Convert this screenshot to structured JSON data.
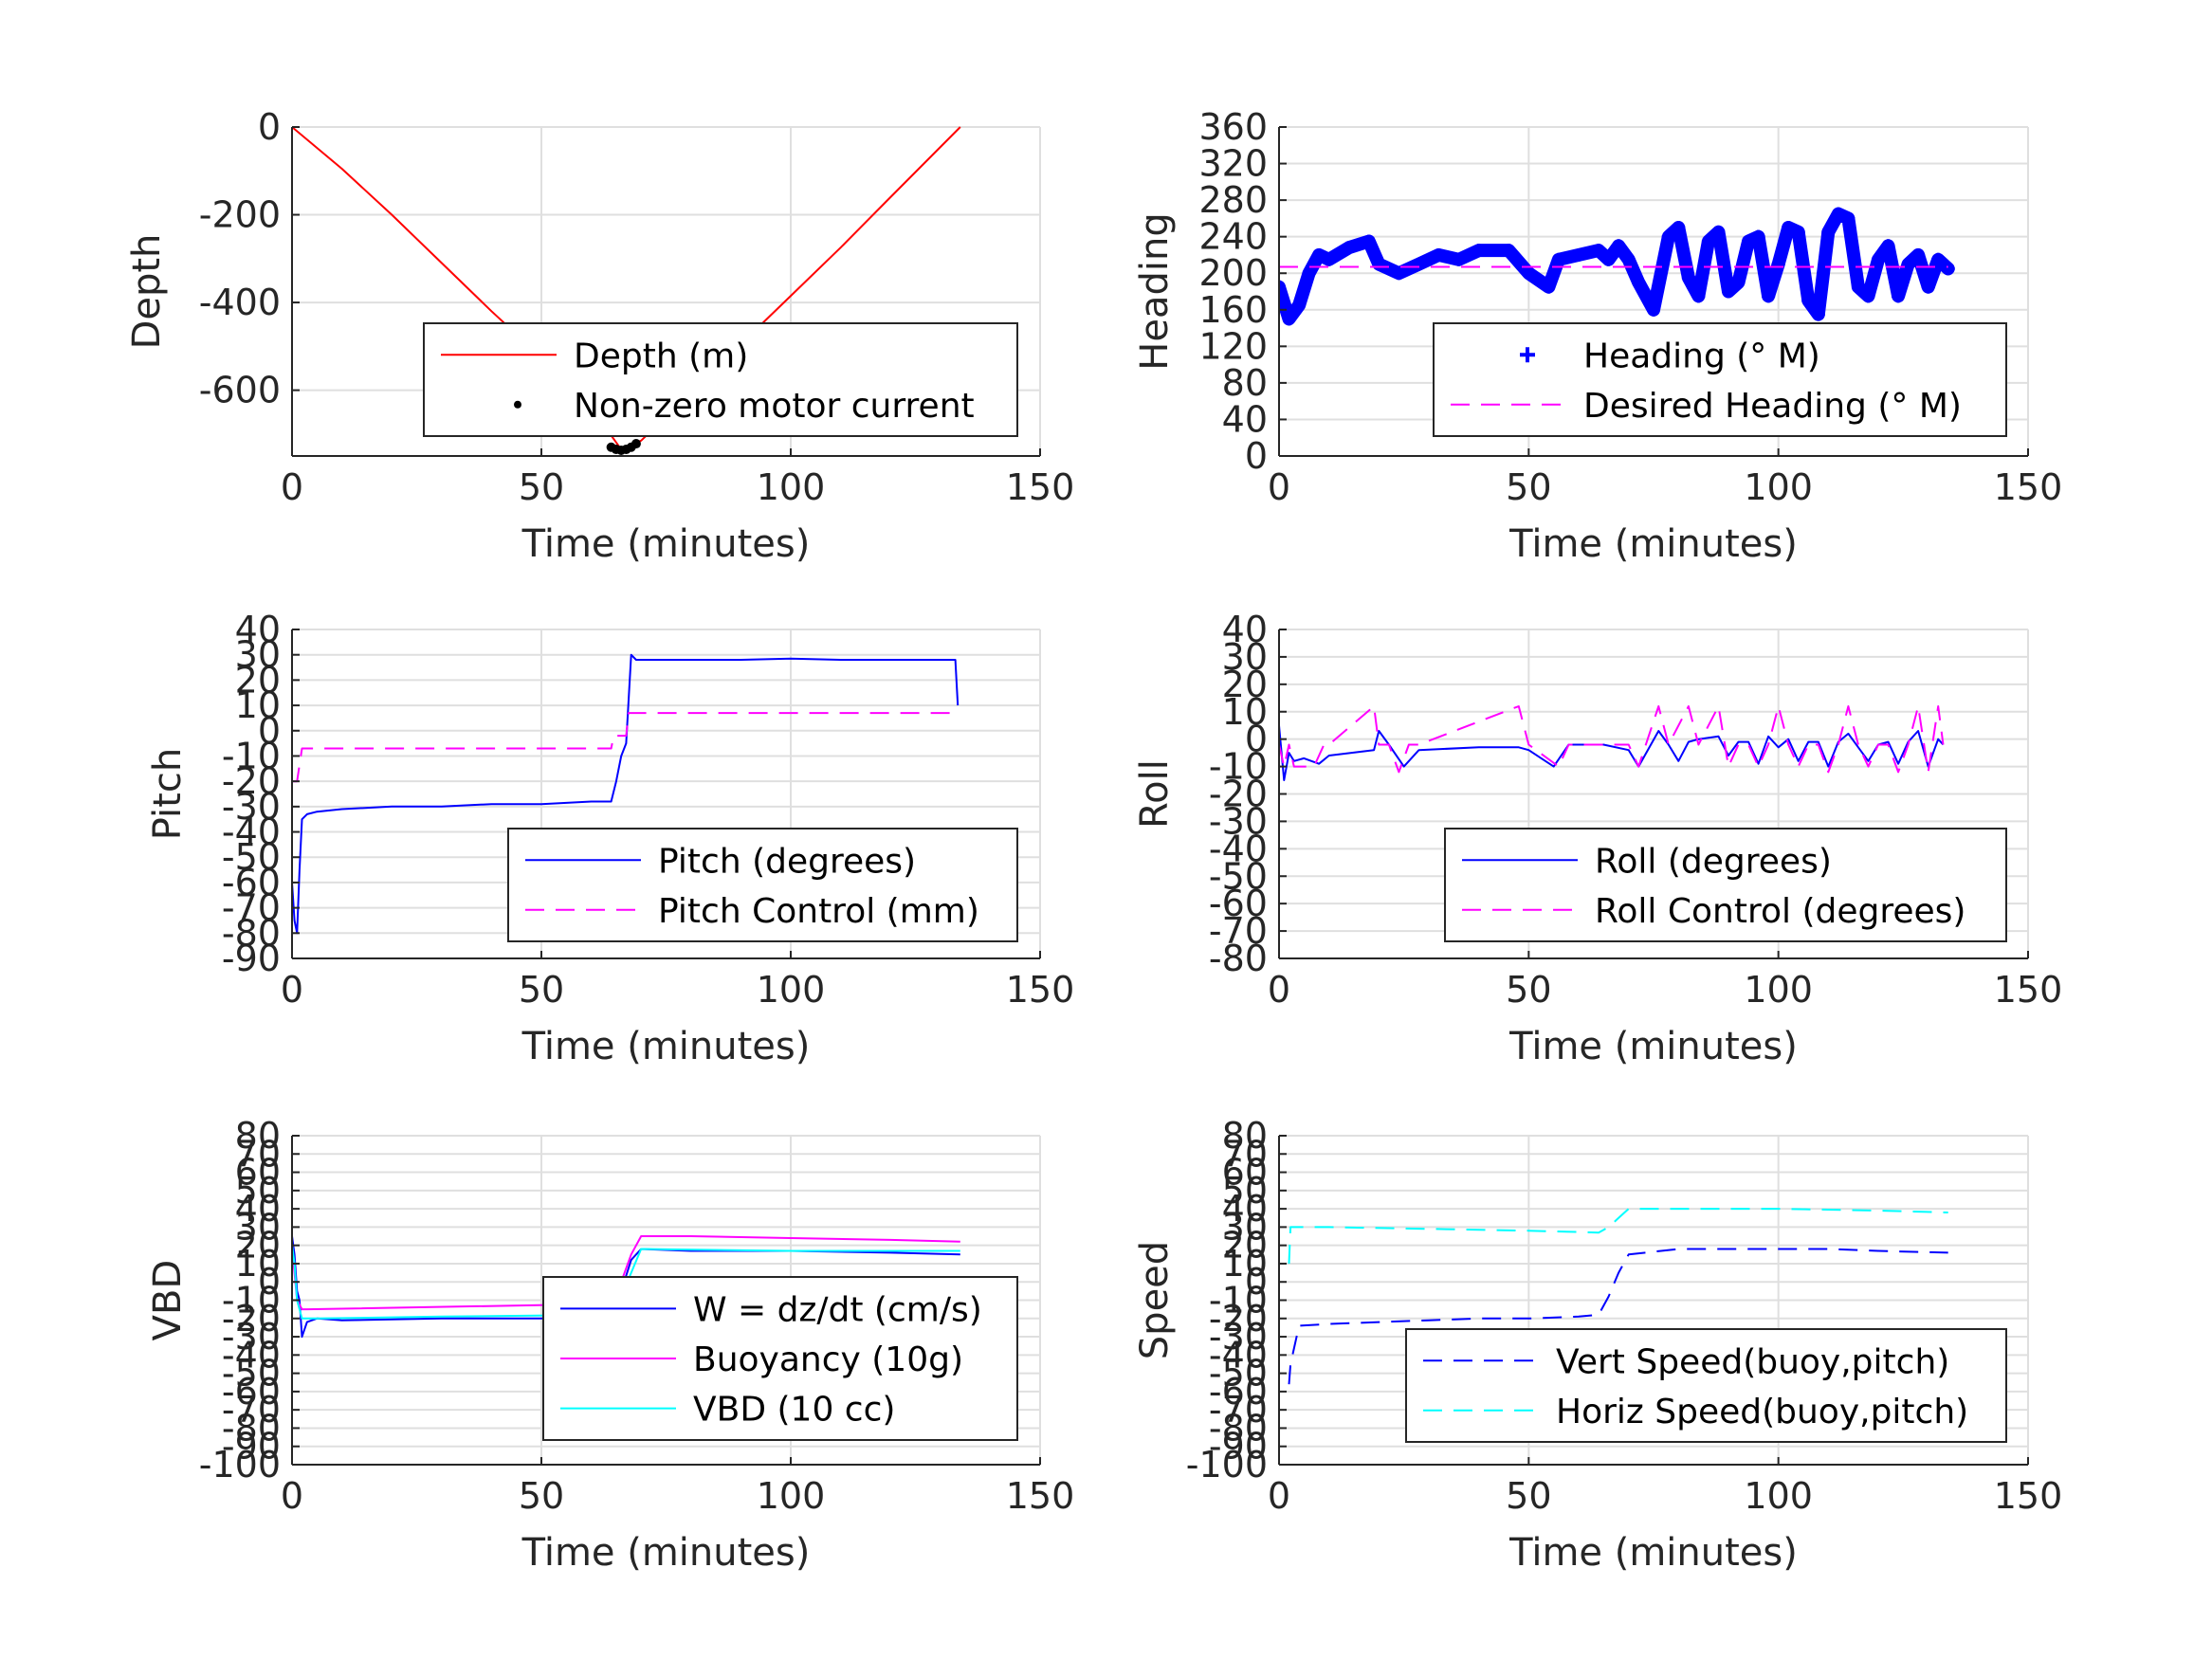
{
  "chart_data": [
    {
      "type": "line",
      "xlabel": "Time (minutes)",
      "ylabel": "Depth",
      "xlim": [
        0,
        150
      ],
      "ylim": [
        -750,
        0
      ],
      "xticks": [
        0,
        50,
        100,
        150
      ],
      "yticks": [
        0,
        -200,
        -400,
        -600
      ],
      "grid": true,
      "legend_placement": "lower-right",
      "series": [
        {
          "name": "Depth (m)",
          "style": "solid",
          "color": "#ff0000",
          "x": [
            0,
            10,
            20,
            30,
            40,
            50,
            60,
            66,
            70,
            80,
            90,
            100,
            110,
            120,
            134
          ],
          "y": [
            0,
            -95,
            -200,
            -310,
            -420,
            -525,
            -640,
            -735,
            -715,
            -605,
            -495,
            -385,
            -275,
            -160,
            0
          ]
        },
        {
          "name": "Non-zero motor current",
          "style": "dots",
          "color": "#000000",
          "x": [
            64,
            65,
            66,
            67,
            68,
            69
          ],
          "y": [
            -730,
            -735,
            -737,
            -735,
            -730,
            -722
          ]
        }
      ]
    },
    {
      "type": "line",
      "xlabel": "Time (minutes)",
      "ylabel": "Heading",
      "xlim": [
        0,
        150
      ],
      "ylim": [
        0,
        360
      ],
      "xticks": [
        0,
        50,
        100,
        150
      ],
      "yticks": [
        0,
        40,
        80,
        120,
        160,
        200,
        240,
        280,
        320,
        360
      ],
      "grid": true,
      "legend_placement": "lower-right",
      "series": [
        {
          "name": "Heading (° M)",
          "style": "plus-markers",
          "color": "#0000ff",
          "x": [
            0,
            2,
            4,
            6,
            8,
            10,
            14,
            18,
            20,
            24,
            28,
            32,
            36,
            40,
            46,
            50,
            54,
            56,
            60,
            64,
            66,
            68,
            70,
            72,
            75,
            78,
            80,
            82,
            84,
            86,
            88,
            90,
            92,
            94,
            96,
            98,
            100,
            102,
            104,
            106,
            108,
            110,
            112,
            114,
            116,
            118,
            120,
            122,
            124,
            126,
            128,
            130,
            132,
            134
          ],
          "y": [
            185,
            150,
            165,
            200,
            220,
            215,
            228,
            235,
            210,
            200,
            210,
            220,
            215,
            225,
            225,
            200,
            185,
            215,
            220,
            225,
            215,
            230,
            215,
            190,
            160,
            240,
            250,
            195,
            175,
            235,
            245,
            180,
            190,
            235,
            240,
            175,
            210,
            250,
            245,
            170,
            155,
            245,
            265,
            260,
            185,
            175,
            215,
            230,
            175,
            210,
            220,
            185,
            215,
            205
          ]
        },
        {
          "name": "Desired Heading (° M)",
          "style": "dashed",
          "color": "#ff00ff",
          "x": [
            0,
            134
          ],
          "y": [
            207,
            207
          ]
        }
      ]
    },
    {
      "type": "line",
      "xlabel": "Time (minutes)",
      "ylabel": "Pitch",
      "xlim": [
        0,
        150
      ],
      "ylim": [
        -90,
        40
      ],
      "xticks": [
        0,
        50,
        100,
        150
      ],
      "yticks": [
        40,
        30,
        20,
        10,
        0,
        -10,
        -20,
        -30,
        -40,
        -50,
        -60,
        -70,
        -80,
        -90
      ],
      "grid": true,
      "legend_placement": "lower-right",
      "series": [
        {
          "name": "Pitch (degrees)",
          "style": "solid",
          "color": "#0000ff",
          "x": [
            0,
            0.5,
            1,
            1.5,
            2,
            3,
            5,
            10,
            20,
            30,
            40,
            50,
            60,
            64,
            65,
            66,
            67,
            68,
            69,
            70,
            80,
            90,
            100,
            110,
            120,
            130,
            133,
            133.5
          ],
          "y": [
            -60,
            -75,
            -80,
            -55,
            -35,
            -33,
            -32,
            -31,
            -30,
            -30,
            -29,
            -29,
            -28,
            -28,
            -20,
            -10,
            -5,
            30,
            28,
            28,
            28,
            28,
            28.5,
            28,
            28,
            28,
            28,
            10
          ]
        },
        {
          "name": "Pitch Control (mm)",
          "style": "dashed",
          "color": "#ff00ff",
          "x": [
            0,
            1,
            2,
            3,
            64,
            64.5,
            67,
            67.5,
            134
          ],
          "y": [
            -20,
            -20,
            -7,
            -7,
            -7,
            -2,
            -2,
            7,
            7
          ]
        }
      ]
    },
    {
      "type": "line",
      "xlabel": "Time (minutes)",
      "ylabel": "Roll",
      "xlim": [
        0,
        150
      ],
      "ylim": [
        -80,
        40
      ],
      "xticks": [
        0,
        50,
        100,
        150
      ],
      "yticks": [
        40,
        30,
        20,
        10,
        0,
        -10,
        -20,
        -30,
        -40,
        -50,
        -60,
        -70,
        -80
      ],
      "grid": true,
      "legend_placement": "lower-right",
      "series": [
        {
          "name": "Roll (degrees)",
          "style": "solid",
          "color": "#0000ff",
          "x": [
            0,
            1,
            2,
            3,
            5,
            8,
            10,
            19,
            20,
            22,
            25,
            28,
            40,
            48,
            50,
            55,
            58,
            65,
            70,
            72,
            76,
            78,
            80,
            82,
            84,
            88,
            90,
            92,
            94,
            96,
            98,
            100,
            102,
            104,
            106,
            108,
            110,
            112,
            114,
            116,
            118,
            120,
            122,
            124,
            126,
            128,
            130,
            132,
            133
          ],
          "y": [
            5,
            -15,
            -5,
            -8,
            -7,
            -9,
            -6,
            -4,
            3,
            -2,
            -10,
            -4,
            -3,
            -3,
            -4,
            -10,
            -2,
            -2,
            -4,
            -10,
            3,
            -2,
            -8,
            -1,
            0,
            1,
            -6,
            -1,
            -1,
            -9,
            1,
            -3,
            0,
            -8,
            -1,
            -1,
            -10,
            -1,
            2,
            -3,
            -8,
            -2,
            -1,
            -9,
            -1,
            3,
            -10,
            0,
            -2
          ]
        },
        {
          "name": "Roll Control (degrees)",
          "style": "dashed",
          "color": "#ff00ff",
          "x": [
            0,
            1,
            2,
            3,
            7,
            9,
            10,
            19,
            20,
            22,
            24,
            26,
            28,
            48,
            50,
            56,
            58,
            70,
            72,
            76,
            78,
            82,
            84,
            88,
            90,
            92,
            94,
            96,
            98,
            100,
            102,
            104,
            106,
            108,
            110,
            112,
            114,
            116,
            118,
            120,
            122,
            124,
            126,
            128,
            130,
            132,
            133
          ],
          "y": [
            -2,
            -10,
            -2,
            -10,
            -10,
            -2,
            -2,
            12,
            -2,
            -2,
            -12,
            -2,
            -2,
            12,
            -2,
            -10,
            -2,
            -2,
            -10,
            12,
            -2,
            12,
            -2,
            12,
            -10,
            -2,
            -2,
            -10,
            -2,
            12,
            -2,
            -10,
            -2,
            -2,
            -12,
            -2,
            12,
            -2,
            -10,
            -2,
            -2,
            -12,
            -2,
            12,
            -12,
            12,
            -2
          ]
        }
      ]
    },
    {
      "type": "line",
      "xlabel": "Time (minutes)",
      "ylabel": "VBD",
      "xlim": [
        0,
        150
      ],
      "ylim": [
        -100,
        80
      ],
      "xticks": [
        0,
        50,
        100,
        150
      ],
      "yticks": [
        80,
        70,
        60,
        50,
        40,
        30,
        20,
        10,
        0,
        -10,
        -20,
        -30,
        -40,
        -50,
        -60,
        -70,
        -80,
        -90,
        -100
      ],
      "grid": true,
      "legend_placement": "lower-right",
      "series": [
        {
          "name": "W = dz/dt (cm/s)",
          "style": "solid",
          "color": "#0000ff",
          "x": [
            0,
            0.5,
            1,
            1.5,
            2,
            3,
            5,
            10,
            30,
            50,
            60,
            64,
            66,
            68,
            70,
            80,
            100,
            120,
            134
          ],
          "y": [
            25,
            15,
            -5,
            -10,
            -30,
            -22,
            -20,
            -21,
            -20,
            -20,
            -19,
            -19,
            -5,
            12,
            18,
            17,
            17,
            16,
            15
          ]
        },
        {
          "name": "Buoyancy (10g)",
          "style": "solid",
          "color": "#ff00ff",
          "x": [
            0,
            0.5,
            1,
            2,
            3,
            64,
            66,
            68,
            70,
            80,
            100,
            120,
            134
          ],
          "y": [
            20,
            5,
            -10,
            -15,
            -15,
            -12,
            0,
            15,
            25,
            25,
            24,
            23,
            22
          ]
        },
        {
          "name": "VBD (10 cc)",
          "style": "solid",
          "color": "#00ffff",
          "x": [
            0,
            0.5,
            1,
            2,
            3,
            5,
            30,
            64,
            66,
            68,
            70,
            100,
            134
          ],
          "y": [
            20,
            10,
            -10,
            -20,
            -20,
            -20,
            -19,
            -18,
            -8,
            5,
            18,
            17,
            17
          ]
        }
      ]
    },
    {
      "type": "line",
      "xlabel": "Time (minutes)",
      "ylabel": "Speed",
      "xlim": [
        0,
        150
      ],
      "ylim": [
        -100,
        80
      ],
      "xticks": [
        0,
        50,
        100,
        150
      ],
      "yticks": [
        80,
        70,
        60,
        50,
        40,
        30,
        20,
        10,
        0,
        -10,
        -20,
        -30,
        -40,
        -50,
        -60,
        -70,
        -80,
        -90,
        -100
      ],
      "grid": true,
      "legend_placement": "lower-right",
      "series": [
        {
          "name": "Vert Speed(buoy,pitch)",
          "style": "dashed",
          "color": "#0000ff",
          "x": [
            2,
            2.3,
            4,
            10,
            20,
            30,
            40,
            50,
            60,
            64,
            66,
            68,
            70,
            80,
            90,
            100,
            110,
            120,
            134
          ],
          "y": [
            -56,
            -45,
            -24,
            -23,
            -22,
            -21,
            -20,
            -20,
            -19,
            -18,
            -8,
            5,
            15,
            18,
            18,
            18,
            18,
            17,
            16
          ]
        },
        {
          "name": "Horiz Speed(buoy,pitch)",
          "style": "dashed",
          "color": "#00ffff",
          "x": [
            2,
            2.3,
            4,
            10,
            30,
            50,
            64,
            66,
            68,
            70,
            80,
            100,
            120,
            134
          ],
          "y": [
            10,
            30,
            30,
            30,
            29,
            28,
            27,
            30,
            35,
            40,
            40,
            40,
            39,
            38
          ]
        }
      ]
    }
  ]
}
